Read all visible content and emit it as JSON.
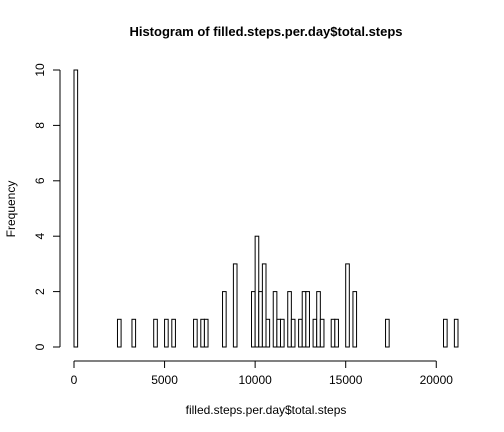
{
  "chart_data": {
    "type": "bar",
    "subtype": "histogram",
    "title": "Histogram of filled.steps.per.day$total.steps",
    "xlabel": "filled.steps.per.day$total.steps",
    "ylabel": "Frequency",
    "xlim": [
      0,
      21200
    ],
    "ylim": [
      0,
      10
    ],
    "bin_width": 200,
    "x_ticks": [
      0,
      5000,
      10000,
      15000,
      20000
    ],
    "y_ticks": [
      0,
      2,
      4,
      6,
      8,
      10
    ],
    "bins": [
      {
        "start": 0,
        "end": 200,
        "count": 10
      },
      {
        "start": 2400,
        "end": 2600,
        "count": 1
      },
      {
        "start": 3200,
        "end": 3400,
        "count": 1
      },
      {
        "start": 4400,
        "end": 4600,
        "count": 1
      },
      {
        "start": 5000,
        "end": 5200,
        "count": 1
      },
      {
        "start": 5400,
        "end": 5600,
        "count": 1
      },
      {
        "start": 6600,
        "end": 6800,
        "count": 1
      },
      {
        "start": 7000,
        "end": 7200,
        "count": 1
      },
      {
        "start": 7200,
        "end": 7400,
        "count": 1
      },
      {
        "start": 8200,
        "end": 8400,
        "count": 2
      },
      {
        "start": 8800,
        "end": 9000,
        "count": 3
      },
      {
        "start": 9800,
        "end": 10000,
        "count": 2
      },
      {
        "start": 10000,
        "end": 10200,
        "count": 4
      },
      {
        "start": 10200,
        "end": 10400,
        "count": 2
      },
      {
        "start": 10400,
        "end": 10600,
        "count": 3
      },
      {
        "start": 10600,
        "end": 10800,
        "count": 1
      },
      {
        "start": 11000,
        "end": 11200,
        "count": 2
      },
      {
        "start": 11200,
        "end": 11400,
        "count": 1
      },
      {
        "start": 11400,
        "end": 11600,
        "count": 1
      },
      {
        "start": 11800,
        "end": 12000,
        "count": 2
      },
      {
        "start": 12000,
        "end": 12200,
        "count": 1
      },
      {
        "start": 12400,
        "end": 12600,
        "count": 1
      },
      {
        "start": 12600,
        "end": 12800,
        "count": 2
      },
      {
        "start": 12800,
        "end": 13000,
        "count": 2
      },
      {
        "start": 13200,
        "end": 13400,
        "count": 1
      },
      {
        "start": 13400,
        "end": 13600,
        "count": 2
      },
      {
        "start": 13600,
        "end": 13800,
        "count": 1
      },
      {
        "start": 14200,
        "end": 14400,
        "count": 1
      },
      {
        "start": 14400,
        "end": 14600,
        "count": 1
      },
      {
        "start": 15000,
        "end": 15200,
        "count": 3
      },
      {
        "start": 15400,
        "end": 15600,
        "count": 2
      },
      {
        "start": 17200,
        "end": 17400,
        "count": 1
      },
      {
        "start": 20400,
        "end": 20600,
        "count": 1
      },
      {
        "start": 21000,
        "end": 21200,
        "count": 1
      }
    ],
    "grid": false,
    "bar_fill": "#ffffff",
    "bar_stroke": "#000000"
  }
}
